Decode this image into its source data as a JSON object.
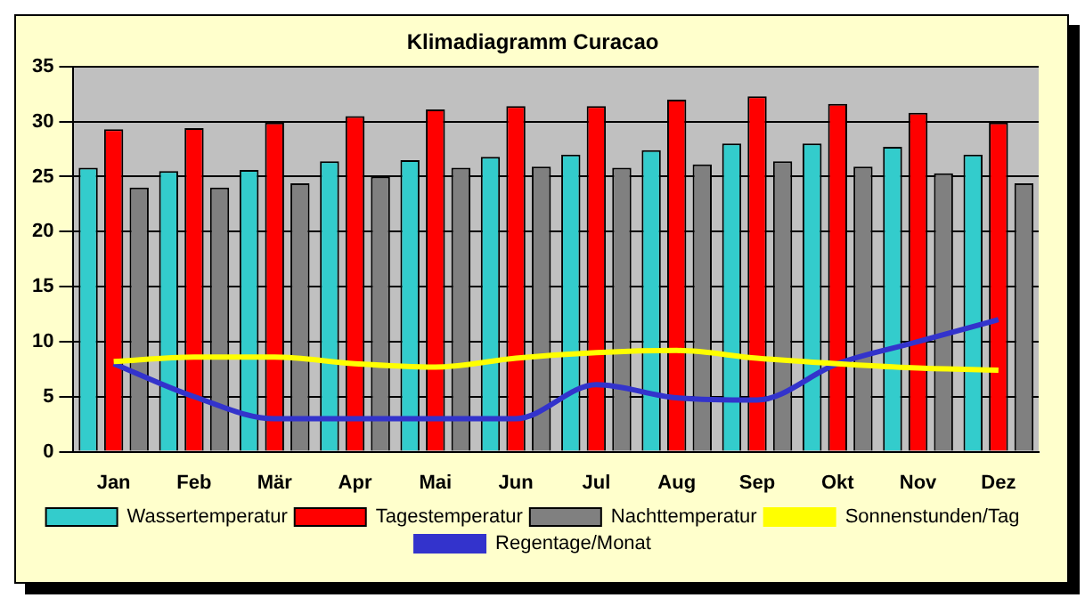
{
  "chart_data": {
    "type": "bar",
    "title": "Klimadiagramm Curacao",
    "categories": [
      "Jan",
      "Feb",
      "Mär",
      "Apr",
      "Mai",
      "Jun",
      "Jul",
      "Aug",
      "Sep",
      "Okt",
      "Nov",
      "Dez"
    ],
    "series": [
      {
        "name": "Wassertemperatur",
        "color": "#33cccc",
        "values": [
          25.8,
          25.5,
          25.6,
          26.4,
          26.5,
          26.8,
          27.0,
          27.4,
          28.0,
          28.0,
          27.7,
          27.0
        ]
      },
      {
        "name": "Tagestemperatur",
        "color": "#ff0000",
        "values": [
          29.3,
          29.4,
          29.9,
          30.5,
          31.1,
          31.4,
          31.4,
          32.0,
          32.3,
          31.6,
          30.8,
          29.9
        ]
      },
      {
        "name": "Nachttemperatur",
        "color": "#808080",
        "values": [
          24.0,
          24.0,
          24.4,
          25.0,
          25.8,
          25.9,
          25.8,
          26.1,
          26.4,
          25.9,
          25.3,
          24.4
        ]
      },
      {
        "name": "Sonnenstunden/Tag",
        "type": "line",
        "color": "#ffff00",
        "values": [
          8.2,
          8.6,
          8.6,
          8.0,
          7.7,
          8.5,
          9.0,
          9.2,
          8.5,
          8.0,
          7.6,
          7.4
        ]
      },
      {
        "name": "Regentage/Monat",
        "type": "line",
        "color": "#3333cc",
        "values": [
          8.0,
          5.0,
          3.0,
          3.0,
          3.0,
          3.0,
          6.1,
          4.9,
          4.7,
          8.0,
          10.0,
          12.0
        ]
      }
    ],
    "ylim": [
      0,
      35
    ],
    "yticks": [
      0,
      5,
      10,
      15,
      20,
      25,
      30,
      35
    ],
    "grid": "y",
    "legend": "bottom",
    "marker": "none",
    "line_style": "solid"
  }
}
